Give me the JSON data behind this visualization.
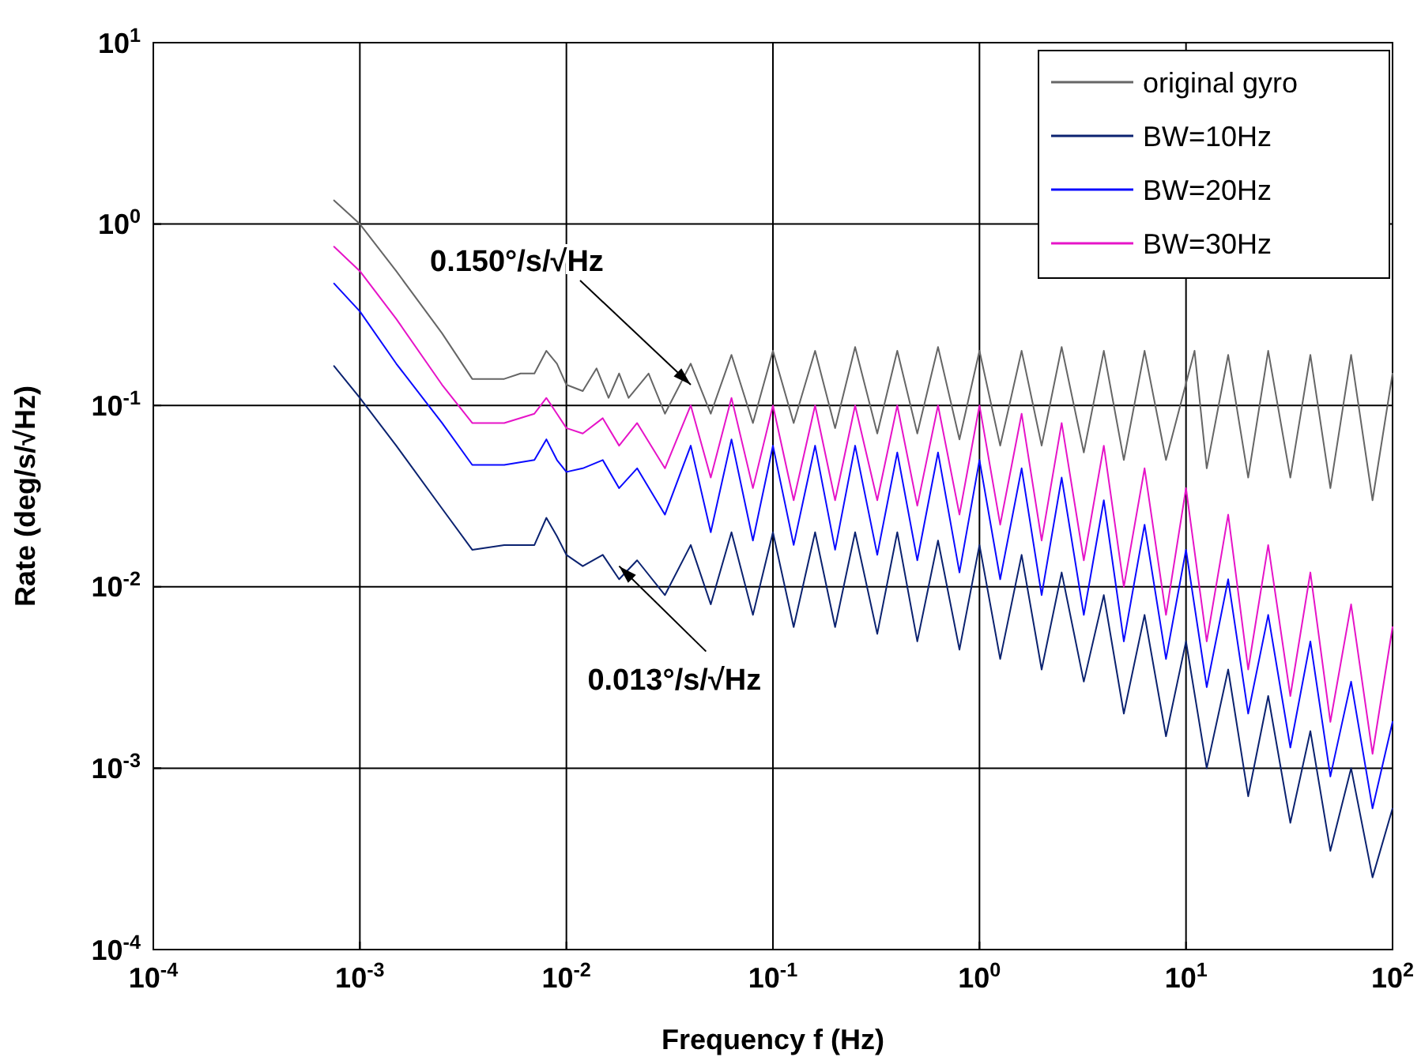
{
  "chart_data": {
    "type": "line",
    "xlabel": "Frequency f (Hz)",
    "ylabel": "Rate (deg/s/√Hz)",
    "log": "xy",
    "grid": true,
    "legend": "top right",
    "marker": "none",
    "line_style": "solid",
    "xlim": [
      0.0001,
      100
    ],
    "ylim": [
      0.0001,
      10
    ],
    "xticks": [
      {
        "value": 0.0001,
        "label": "10$^{-4}$"
      },
      {
        "value": 0.001,
        "label": "10$^{-3}$"
      },
      {
        "value": 0.01,
        "label": "10$^{-2}$"
      },
      {
        "value": 0.1,
        "label": "10$^{-1}$"
      },
      {
        "value": 1,
        "label": "10$^{0}$"
      },
      {
        "value": 10,
        "label": "10$^{1}$"
      },
      {
        "value": 100,
        "label": "10$^{2}$"
      }
    ],
    "yticks": [
      {
        "value": 0.0001,
        "label": "10$^{-4}$"
      },
      {
        "value": 0.001,
        "label": "10$^{-3}$"
      },
      {
        "value": 0.01,
        "label": "10$^{-2}$"
      },
      {
        "value": 0.1,
        "label": "10$^{-1}$"
      },
      {
        "value": 1,
        "label": "10$^{0}$"
      },
      {
        "value": 10,
        "label": "10$^{1}$"
      }
    ],
    "series": [
      {
        "name": "original gyro",
        "color": "#666666",
        "x": [
          0.00075,
          0.001,
          0.0015,
          0.0025,
          0.0035,
          0.005,
          0.006,
          0.007,
          0.008,
          0.009,
          0.01,
          0.012,
          0.014,
          0.016,
          0.018,
          0.02,
          0.025,
          0.03,
          0.04,
          0.05,
          0.063,
          0.08,
          0.1,
          0.126,
          0.16,
          0.2,
          0.25,
          0.32,
          0.4,
          0.5,
          0.63,
          0.8,
          1,
          1.26,
          1.6,
          2,
          2.5,
          3.2,
          4,
          5,
          6.3,
          8,
          11,
          12.6,
          16,
          20,
          25,
          32,
          40,
          50,
          63,
          80,
          100
        ],
        "values": [
          1.35,
          1.0,
          0.55,
          0.25,
          0.14,
          0.14,
          0.15,
          0.15,
          0.2,
          0.17,
          0.13,
          0.12,
          0.16,
          0.11,
          0.15,
          0.11,
          0.15,
          0.09,
          0.17,
          0.09,
          0.19,
          0.08,
          0.2,
          0.08,
          0.2,
          0.075,
          0.21,
          0.07,
          0.2,
          0.07,
          0.21,
          0.065,
          0.2,
          0.06,
          0.2,
          0.06,
          0.21,
          0.055,
          0.2,
          0.05,
          0.2,
          0.05,
          0.2,
          0.045,
          0.19,
          0.04,
          0.2,
          0.04,
          0.19,
          0.035,
          0.19,
          0.03,
          0.15
        ]
      },
      {
        "name": "BW=10Hz",
        "color": "#0b2270",
        "x": [
          0.00075,
          0.001,
          0.0015,
          0.0025,
          0.0035,
          0.005,
          0.007,
          0.008,
          0.009,
          0.01,
          0.012,
          0.015,
          0.018,
          0.022,
          0.03,
          0.04,
          0.05,
          0.063,
          0.08,
          0.1,
          0.126,
          0.16,
          0.2,
          0.25,
          0.32,
          0.4,
          0.5,
          0.63,
          0.8,
          1,
          1.26,
          1.6,
          2,
          2.5,
          3.2,
          4,
          5,
          6.3,
          8,
          10,
          12.6,
          16,
          20,
          25,
          32,
          40,
          50,
          63,
          80,
          100
        ],
        "values": [
          0.165,
          0.11,
          0.06,
          0.027,
          0.016,
          0.017,
          0.017,
          0.024,
          0.019,
          0.015,
          0.013,
          0.015,
          0.011,
          0.014,
          0.009,
          0.017,
          0.008,
          0.02,
          0.007,
          0.02,
          0.006,
          0.02,
          0.006,
          0.02,
          0.0055,
          0.02,
          0.005,
          0.018,
          0.0045,
          0.017,
          0.004,
          0.015,
          0.0035,
          0.012,
          0.003,
          0.009,
          0.002,
          0.007,
          0.0015,
          0.005,
          0.001,
          0.0035,
          0.0007,
          0.0025,
          0.0005,
          0.0016,
          0.00035,
          0.001,
          0.00025,
          0.0006
        ]
      },
      {
        "name": "BW=20Hz",
        "color": "#0a0aff",
        "x": [
          0.00075,
          0.001,
          0.0015,
          0.0025,
          0.0035,
          0.005,
          0.007,
          0.008,
          0.009,
          0.01,
          0.012,
          0.015,
          0.018,
          0.022,
          0.03,
          0.04,
          0.05,
          0.063,
          0.08,
          0.1,
          0.126,
          0.16,
          0.2,
          0.25,
          0.32,
          0.4,
          0.5,
          0.63,
          0.8,
          1,
          1.26,
          1.6,
          2,
          2.5,
          3.2,
          4,
          5,
          6.3,
          8,
          10,
          12.6,
          16,
          20,
          25,
          32,
          40,
          50,
          63,
          80,
          100
        ],
        "values": [
          0.47,
          0.33,
          0.17,
          0.08,
          0.047,
          0.047,
          0.05,
          0.065,
          0.05,
          0.043,
          0.045,
          0.05,
          0.035,
          0.045,
          0.025,
          0.06,
          0.02,
          0.065,
          0.018,
          0.06,
          0.017,
          0.06,
          0.016,
          0.06,
          0.015,
          0.055,
          0.014,
          0.055,
          0.012,
          0.05,
          0.011,
          0.045,
          0.009,
          0.04,
          0.007,
          0.03,
          0.005,
          0.022,
          0.004,
          0.016,
          0.0028,
          0.011,
          0.002,
          0.007,
          0.0013,
          0.005,
          0.0009,
          0.003,
          0.0006,
          0.0018
        ]
      },
      {
        "name": "BW=30Hz",
        "color": "#e614c8",
        "x": [
          0.00075,
          0.001,
          0.0015,
          0.0025,
          0.0035,
          0.005,
          0.007,
          0.008,
          0.009,
          0.01,
          0.012,
          0.015,
          0.018,
          0.022,
          0.03,
          0.04,
          0.05,
          0.063,
          0.08,
          0.1,
          0.126,
          0.16,
          0.2,
          0.25,
          0.32,
          0.4,
          0.5,
          0.63,
          0.8,
          1,
          1.26,
          1.6,
          2,
          2.5,
          3.2,
          4,
          5,
          6.3,
          8,
          10,
          12.6,
          16,
          20,
          25,
          32,
          40,
          50,
          63,
          80,
          100
        ],
        "values": [
          0.75,
          0.55,
          0.3,
          0.13,
          0.08,
          0.08,
          0.09,
          0.11,
          0.09,
          0.075,
          0.07,
          0.085,
          0.06,
          0.08,
          0.045,
          0.1,
          0.04,
          0.11,
          0.035,
          0.1,
          0.03,
          0.1,
          0.03,
          0.1,
          0.03,
          0.1,
          0.028,
          0.1,
          0.025,
          0.1,
          0.022,
          0.09,
          0.018,
          0.08,
          0.014,
          0.06,
          0.01,
          0.045,
          0.007,
          0.035,
          0.005,
          0.025,
          0.0035,
          0.017,
          0.0025,
          0.012,
          0.0018,
          0.008,
          0.0012,
          0.006
        ]
      }
    ],
    "annotations": [
      {
        "text": "0.150°/s/√Hz",
        "x": 0.04,
        "y": 0.13
      },
      {
        "text": "0.013°/s/√Hz",
        "x": 0.018,
        "y": 0.013
      }
    ]
  }
}
